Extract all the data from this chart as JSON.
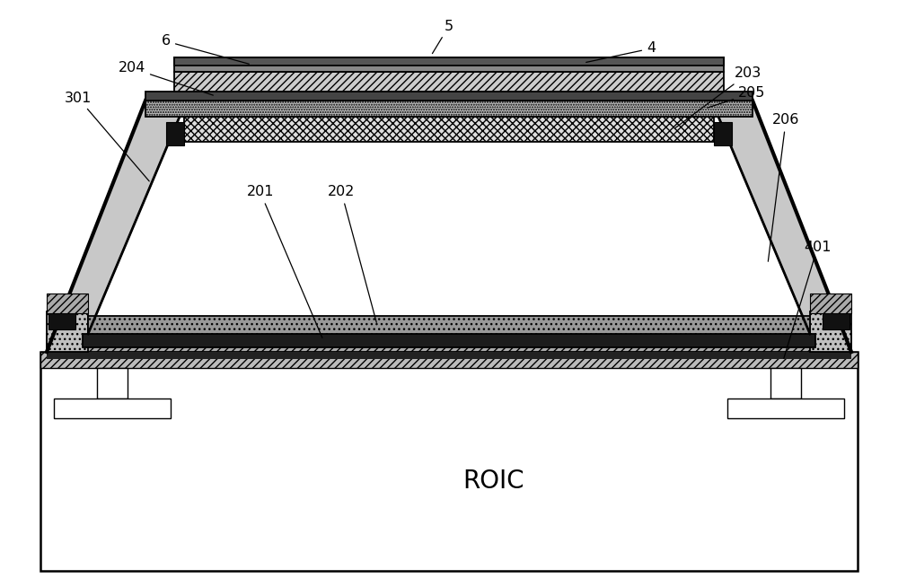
{
  "bg_color": "#ffffff",
  "figsize": [
    10.0,
    6.54
  ],
  "dpi": 100,
  "roic_label": "ROIC"
}
